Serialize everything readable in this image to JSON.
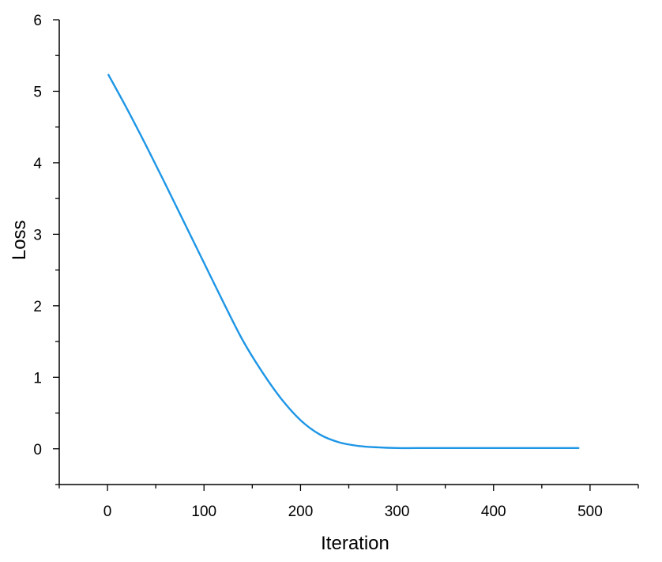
{
  "chart_data": {
    "type": "line",
    "title": "",
    "xlabel": "Iteration",
    "ylabel": "Loss",
    "xlim": [
      -50,
      550
    ],
    "ylim": [
      -0.5,
      6
    ],
    "x_ticks": [
      0,
      100,
      200,
      300,
      400,
      500
    ],
    "x_minor_ticks": [
      -50,
      50,
      150,
      250,
      350,
      450,
      550
    ],
    "y_ticks": [
      0,
      1,
      2,
      3,
      4,
      5,
      6
    ],
    "y_minor_ticks": [
      -0.5,
      0.5,
      1.5,
      2.5,
      3.5,
      4.5,
      5.5
    ],
    "grid": false,
    "legend": "none",
    "series": [
      {
        "color": "#1E96E6",
        "x": [
          1,
          20,
          40,
          60,
          80,
          100,
          120,
          140,
          160,
          180,
          200,
          220,
          240,
          260,
          280,
          300,
          320,
          350,
          400,
          450,
          488
        ],
        "y": [
          5.23,
          4.76,
          4.24,
          3.7,
          3.15,
          2.6,
          2.05,
          1.52,
          1.08,
          0.7,
          0.4,
          0.2,
          0.09,
          0.04,
          0.02,
          0.01,
          0.01,
          0.01,
          0.01,
          0.01,
          0.01
        ]
      }
    ]
  }
}
